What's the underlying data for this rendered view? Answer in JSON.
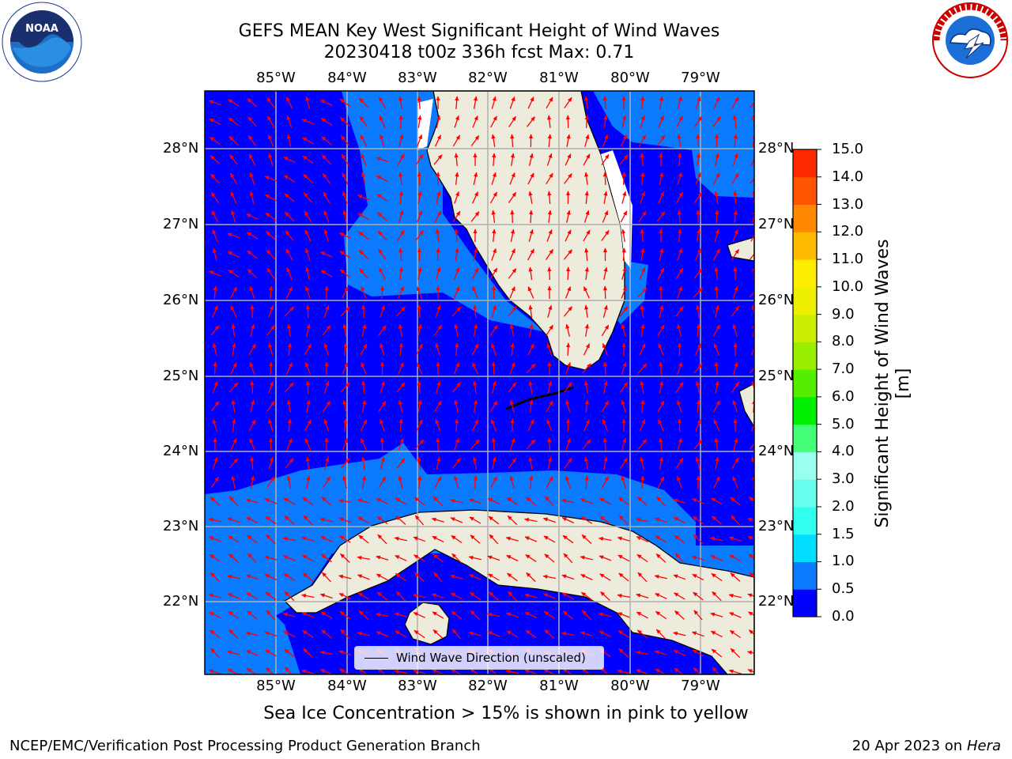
{
  "header": {
    "title_line1": "GEFS MEAN Key West Significant Height of Wind Waves",
    "title_line2": "20230418 t00z 336h fcst   Max: 0.71"
  },
  "logos": {
    "left": {
      "icon": "noaa-logo",
      "text": "NOAA",
      "ring_text": "NATIONAL OCEANIC AND ATMOSPHERIC ADMINISTRATION · U.S. DEPARTMENT OF COMMERCE"
    },
    "right": {
      "icon": "national-weather-service-logo",
      "ring_text": "NATIONAL WEATHER SERVICE"
    }
  },
  "map": {
    "longitude_ticks": [
      "85°W",
      "84°W",
      "83°W",
      "82°W",
      "81°W",
      "80°W",
      "79°W"
    ],
    "latitude_ticks": [
      "28°N",
      "27°N",
      "26°N",
      "25°N",
      "24°N",
      "23°N",
      "22°N"
    ],
    "legend_label": "Wind Wave Direction (unscaled)",
    "arrow_color": "#ff0000"
  },
  "colorbar": {
    "label": "Significant Height of Wind Waves [m]",
    "tick_labels": [
      "15.0",
      "14.0",
      "13.0",
      "12.0",
      "11.0",
      "10.0",
      "9.0",
      "8.0",
      "7.0",
      "6.0",
      "5.0",
      "4.0",
      "3.0",
      "2.0",
      "1.5",
      "1.0",
      "0.5",
      "0.0"
    ],
    "colors": [
      "#0000ff",
      "#0a7aff",
      "#00ddff",
      "#33ffee",
      "#66ffee",
      "#99ffee",
      "#44ff77",
      "#00ee00",
      "#55ee00",
      "#99ee00",
      "#ccee00",
      "#eeee00",
      "#ffee00",
      "#ffbb00",
      "#ff8800",
      "#ff5500",
      "#ff2a00",
      "#ff0000"
    ]
  },
  "notes": {
    "sea_ice": "Sea Ice Concentration > 15% is shown in pink to yellow"
  },
  "footer": {
    "left": "NCEP/EMC/Verification Post Processing Product Generation Branch",
    "right_date": "20 Apr 2023 on ",
    "right_host": "Hera"
  }
}
